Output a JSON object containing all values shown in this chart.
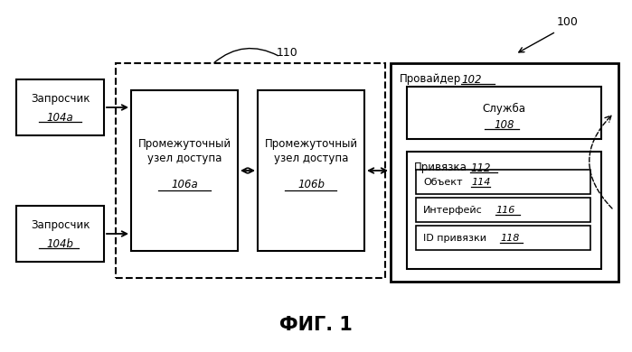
{
  "background_color": "#ffffff",
  "title": "ФИГ. 1",
  "label_100": "100",
  "label_110": "110",
  "requestor_a_line1": "Запросчик",
  "requestor_a_line2": "104а",
  "requestor_b_line1": "Запросчик",
  "requestor_b_line2": "104b",
  "node_a_line1": "Промежуточный",
  "node_a_line2": "узел доступа",
  "node_a_line3": "106а",
  "node_b_line1": "Промежуточный",
  "node_b_line2": "узел доступа",
  "node_b_line3": "106b",
  "provider_label": "Провайдер",
  "provider_num": "102",
  "service_line1": "Служба",
  "service_line2": "108",
  "binding_label": "Привязка",
  "binding_num": "112",
  "object_line1": "Объект",
  "object_line2": "114",
  "interface_line1": "Интерфейс",
  "interface_line2": "116",
  "id_line1": "ID привязки",
  "id_line2": "118"
}
